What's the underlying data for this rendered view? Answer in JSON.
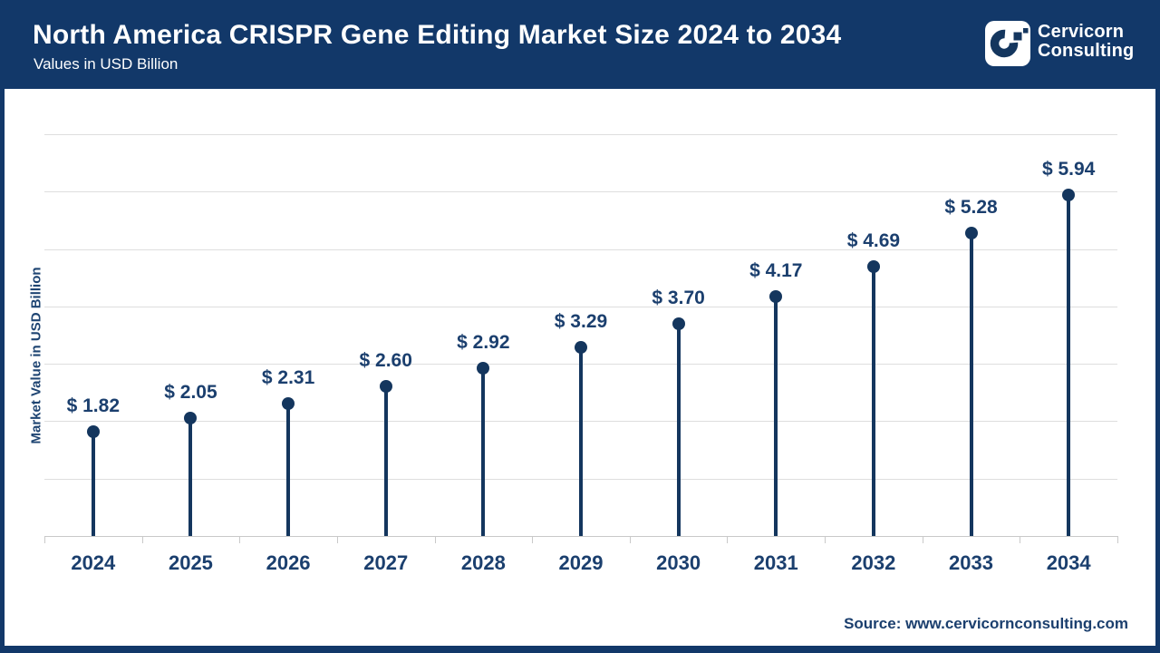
{
  "header": {
    "title": "North America CRISPR Gene Editing Market Size 2024 to 2034",
    "subtitle": "Values in USD Billion",
    "brand": {
      "line1": "Cervicorn",
      "line2": "Consulting",
      "logo_icon": "cervicorn-c-logo"
    }
  },
  "chart_data": {
    "type": "bar",
    "variant": "lollipop",
    "title": "North America CRISPR Gene Editing Market Size 2024 to 2034",
    "subtitle": "Values in USD Billion",
    "categories": [
      "2024",
      "2025",
      "2026",
      "2027",
      "2028",
      "2029",
      "2030",
      "2031",
      "2032",
      "2033",
      "2034"
    ],
    "values": [
      1.82,
      2.05,
      2.31,
      2.6,
      2.92,
      3.29,
      3.7,
      4.17,
      4.69,
      5.28,
      5.94
    ],
    "point_labels": [
      "$ 1.82",
      "$ 2.05",
      "$ 2.31",
      "$ 2.60",
      "$ 2.92",
      "$ 3.29",
      "$ 3.70",
      "$ 4.17",
      "$ 4.69",
      "$ 5.28",
      "$ 5.94"
    ],
    "xlabel": "",
    "ylabel": "Market Value in USD Billion",
    "ylim": [
      0,
      7
    ],
    "gridline_step": 1,
    "grid": true,
    "legend": false
  },
  "footer": {
    "source": "Source: www.cervicornconsulting.com"
  },
  "colors": {
    "header_navy": "#123869",
    "stem_navy": "#14365e",
    "text_navy": "#1b3f6e",
    "gridline": "#dedede",
    "axis": "#c9c9c9",
    "background": "#ffffff"
  }
}
